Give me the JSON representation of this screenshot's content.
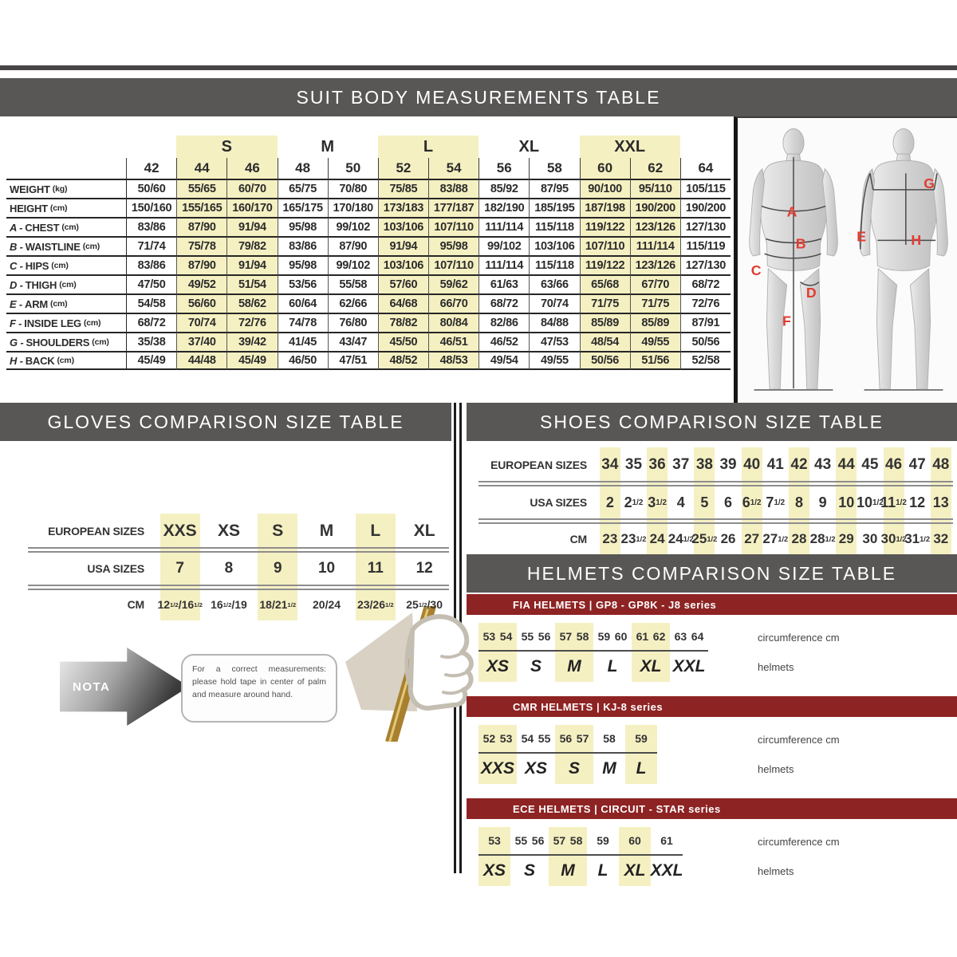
{
  "suit": {
    "title": "SUIT BODY MEASUREMENTS TABLE",
    "sizes": [
      "42",
      "44",
      "46",
      "48",
      "50",
      "52",
      "54",
      "56",
      "58",
      "60",
      "62",
      "64"
    ],
    "groups": [
      {
        "label": "",
        "span": 1,
        "highlight": false
      },
      {
        "label": "S",
        "span": 2,
        "highlight": true
      },
      {
        "label": "M",
        "span": 2,
        "highlight": false
      },
      {
        "label": "L",
        "span": 2,
        "highlight": true
      },
      {
        "label": "XL",
        "span": 2,
        "highlight": false
      },
      {
        "label": "XXL",
        "span": 2,
        "highlight": true
      },
      {
        "label": "",
        "span": 1,
        "highlight": false
      }
    ],
    "highlight_size_indices": [
      1,
      2,
      5,
      6,
      9,
      10
    ],
    "rows": [
      {
        "letter": "",
        "name": "WEIGHT",
        "unit": "(kg)",
        "values": [
          "50/60",
          "55/65",
          "60/70",
          "65/75",
          "70/80",
          "75/85",
          "83/88",
          "85/92",
          "87/95",
          "90/100",
          "95/110",
          "105/115"
        ]
      },
      {
        "letter": "",
        "name": "HEIGHT",
        "unit": "(cm)",
        "values": [
          "150/160",
          "155/165",
          "160/170",
          "165/175",
          "170/180",
          "173/183",
          "177/187",
          "182/190",
          "185/195",
          "187/198",
          "190/200",
          "190/200"
        ]
      },
      {
        "letter": "A",
        "name": "CHEST",
        "unit": "(cm)",
        "values": [
          "83/86",
          "87/90",
          "91/94",
          "95/98",
          "99/102",
          "103/106",
          "107/110",
          "111/114",
          "115/118",
          "119/122",
          "123/126",
          "127/130"
        ]
      },
      {
        "letter": "B",
        "name": "WAISTLINE",
        "unit": "(cm)",
        "values": [
          "71/74",
          "75/78",
          "79/82",
          "83/86",
          "87/90",
          "91/94",
          "95/98",
          "99/102",
          "103/106",
          "107/110",
          "111/114",
          "115/119"
        ]
      },
      {
        "letter": "C",
        "name": "HIPS",
        "unit": "(cm)",
        "values": [
          "83/86",
          "87/90",
          "91/94",
          "95/98",
          "99/102",
          "103/106",
          "107/110",
          "111/114",
          "115/118",
          "119/122",
          "123/126",
          "127/130"
        ]
      },
      {
        "letter": "D",
        "name": "THIGH",
        "unit": "(cm)",
        "values": [
          "47/50",
          "49/52",
          "51/54",
          "53/56",
          "55/58",
          "57/60",
          "59/62",
          "61/63",
          "63/66",
          "65/68",
          "67/70",
          "68/72"
        ]
      },
      {
        "letter": "E",
        "name": "ARM",
        "unit": "(cm)",
        "values": [
          "54/58",
          "56/60",
          "58/62",
          "60/64",
          "62/66",
          "64/68",
          "66/70",
          "68/72",
          "70/74",
          "71/75",
          "71/75",
          "72/76"
        ]
      },
      {
        "letter": "F",
        "name": "INSIDE LEG",
        "unit": "(cm)",
        "values": [
          "68/72",
          "70/74",
          "72/76",
          "74/78",
          "76/80",
          "78/82",
          "80/84",
          "82/86",
          "84/88",
          "85/89",
          "85/89",
          "87/91"
        ]
      },
      {
        "letter": "G",
        "name": "SHOULDERS",
        "unit": "(cm)",
        "values": [
          "35/38",
          "37/40",
          "39/42",
          "41/45",
          "43/47",
          "45/50",
          "46/51",
          "46/52",
          "47/53",
          "48/54",
          "49/55",
          "50/56"
        ]
      },
      {
        "letter": "H",
        "name": "BACK",
        "unit": "(cm)",
        "values": [
          "45/49",
          "44/48",
          "45/49",
          "46/50",
          "47/51",
          "48/52",
          "48/53",
          "49/54",
          "49/55",
          "50/56",
          "51/56",
          "52/58"
        ]
      }
    ]
  },
  "figures": {
    "letters": [
      "A",
      "B",
      "C",
      "D",
      "E",
      "F",
      "G",
      "H"
    ]
  },
  "gloves": {
    "title": "GLOVES COMPARISON SIZE TABLE",
    "row_labels": [
      "EUROPEAN SIZES",
      "USA SIZES",
      "CM"
    ],
    "european": [
      "XXS",
      "XS",
      "S",
      "M",
      "L",
      "XL"
    ],
    "usa": [
      "7",
      "8",
      "9",
      "10",
      "11",
      "12"
    ],
    "cm": [
      "12½/16½",
      "16½/19",
      "18/21½",
      "20/24",
      "23/26½",
      "25½/30"
    ],
    "highlight_indices": [
      0,
      2,
      4
    ]
  },
  "nota": {
    "label": "NOTA",
    "text": "For a correct measurements: please hold tape in center of palm and measure around hand."
  },
  "shoes": {
    "title": "SHOES COMPARISON SIZE TABLE",
    "row_labels": [
      "EUROPEAN SIZES",
      "USA SIZES",
      "CM"
    ],
    "european": [
      "34",
      "35",
      "36",
      "37",
      "38",
      "39",
      "40",
      "41",
      "42",
      "43",
      "44",
      "45",
      "46",
      "47",
      "48"
    ],
    "usa": [
      "2",
      "2½",
      "3½",
      "4",
      "5",
      "6",
      "6½",
      "7½",
      "8",
      "9",
      "10",
      "10½",
      "11½",
      "12",
      "13"
    ],
    "cm": [
      "23",
      "23½",
      "24",
      "24½",
      "25½",
      "26",
      "27",
      "27½",
      "28",
      "28½",
      "29",
      "30",
      "30½",
      "31½",
      "32"
    ],
    "highlight_indices": [
      0,
      2,
      4,
      6,
      8,
      10,
      12,
      14
    ]
  },
  "helmets": {
    "title": "HELMETS COMPARISON SIZE TABLE",
    "circumference_label": "circumference cm",
    "helmets_label": "helmets",
    "sections": [
      {
        "bar": "FIA HELMETS | GP8 - GP8K - J8 series",
        "groups": [
          {
            "size": "XS",
            "cm": [
              "53",
              "54"
            ]
          },
          {
            "size": "S",
            "cm": [
              "55",
              "56"
            ]
          },
          {
            "size": "M",
            "cm": [
              "57",
              "58"
            ]
          },
          {
            "size": "L",
            "cm": [
              "59",
              "60"
            ]
          },
          {
            "size": "XL",
            "cm": [
              "61",
              "62"
            ]
          },
          {
            "size": "XXL",
            "cm": [
              "63",
              "64"
            ]
          }
        ]
      },
      {
        "bar": "CMR HELMETS | KJ-8 series",
        "groups": [
          {
            "size": "XXS",
            "cm": [
              "52",
              "53"
            ]
          },
          {
            "size": "XS",
            "cm": [
              "54",
              "55"
            ]
          },
          {
            "size": "S",
            "cm": [
              "56",
              "57"
            ]
          },
          {
            "size": "M",
            "cm": [
              "58"
            ]
          },
          {
            "size": "L",
            "cm": [
              "59"
            ]
          }
        ]
      },
      {
        "bar": "ECE HELMETS | CIRCUIT - STAR series",
        "groups": [
          {
            "size": "XS",
            "cm": [
              "53"
            ]
          },
          {
            "size": "S",
            "cm": [
              "55",
              "56"
            ]
          },
          {
            "size": "M",
            "cm": [
              "57",
              "58"
            ]
          },
          {
            "size": "L",
            "cm": [
              "59"
            ]
          },
          {
            "size": "XL",
            "cm": [
              "60"
            ]
          },
          {
            "size": "XXL",
            "cm": [
              "61"
            ]
          }
        ]
      }
    ]
  },
  "colors": {
    "header_gray": "#595656",
    "highlight_yellow": "#f5f0c2",
    "helmet_bar_red": "#8e2323",
    "figure_letter_red": "#e23b30"
  }
}
